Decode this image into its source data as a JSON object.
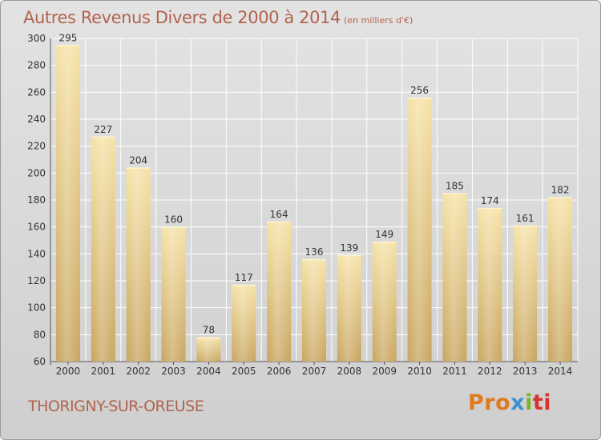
{
  "header": {
    "title": "Autres Revenus Divers de 2000 à 2014",
    "unit": "(en milliers d'€)"
  },
  "footer": {
    "commune": "THORIGNY-SUR-OREUSE",
    "logo_parts": [
      "Pro",
      "x",
      "i",
      "ti"
    ],
    "logo_colors": [
      "#e07a1e",
      "#3d8fd1",
      "#7ab629",
      "#d6352b"
    ]
  },
  "chart_data": {
    "type": "bar",
    "title": "Autres Revenus Divers de 2000 à 2014",
    "xlabel": "",
    "ylabel": "",
    "categories": [
      "2000",
      "2001",
      "2002",
      "2003",
      "2004",
      "2005",
      "2006",
      "2007",
      "2008",
      "2009",
      "2010",
      "2011",
      "2012",
      "2013",
      "2014"
    ],
    "values": [
      295,
      227,
      204,
      160,
      78,
      117,
      164,
      136,
      139,
      149,
      256,
      185,
      174,
      161,
      182
    ],
    "ylim": [
      60,
      300
    ],
    "yticks": [
      60,
      80,
      100,
      120,
      140,
      160,
      180,
      200,
      220,
      240,
      260,
      280,
      300
    ],
    "grid": true,
    "bar_color": "#e6c97e"
  }
}
